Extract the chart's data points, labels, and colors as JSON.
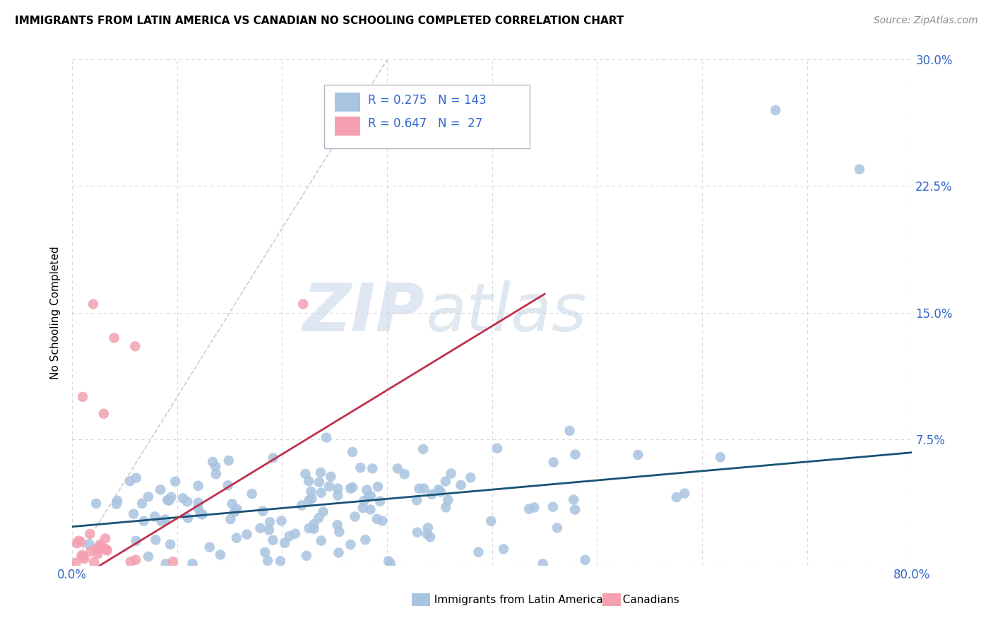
{
  "title": "IMMIGRANTS FROM LATIN AMERICA VS CANADIAN NO SCHOOLING COMPLETED CORRELATION CHART",
  "source": "Source: ZipAtlas.com",
  "ylabel": "No Schooling Completed",
  "xlim": [
    0.0,
    0.8
  ],
  "ylim": [
    0.0,
    0.3
  ],
  "xticks": [
    0.0,
    0.1,
    0.2,
    0.3,
    0.4,
    0.5,
    0.6,
    0.7,
    0.8
  ],
  "yticks": [
    0.0,
    0.075,
    0.15,
    0.225,
    0.3
  ],
  "ytick_labels": [
    "",
    "7.5%",
    "15.0%",
    "22.5%",
    "30.0%"
  ],
  "blue_R": 0.275,
  "blue_N": 143,
  "pink_R": 0.647,
  "pink_N": 27,
  "blue_color": "#a8c4e0",
  "pink_color": "#f4a0b0",
  "blue_line_color": "#1a5276",
  "pink_line_color": "#c0304a",
  "diag_line_color": "#c8c8c8",
  "legend_label_blue": "Immigrants from Latin America",
  "legend_label_pink": "Canadians",
  "watermark_zip": "ZIP",
  "watermark_atlas": "atlas",
  "title_fontsize": 11,
  "axis_label_color": "#3366cc"
}
